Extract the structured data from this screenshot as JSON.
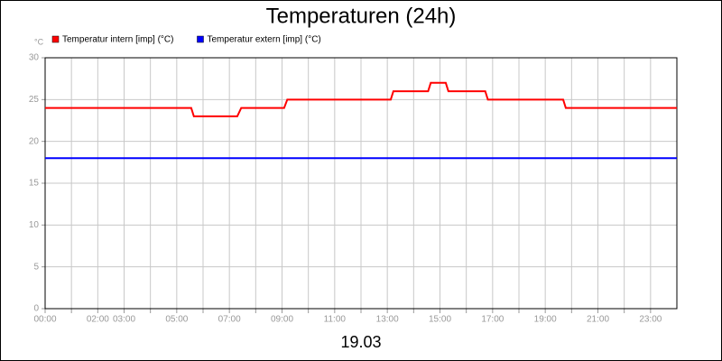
{
  "chart_data": {
    "type": "line",
    "title": "Temperaturen (24h)",
    "y_unit": "°C",
    "x_label": "19.03",
    "xlim": [
      0,
      24
    ],
    "ylim": [
      0,
      30
    ],
    "yticks": [
      0,
      5,
      10,
      15,
      20,
      25,
      30
    ],
    "grid": true,
    "xticks": [
      {
        "value": 0,
        "label": "00:00"
      },
      {
        "value": 1,
        "label": null
      },
      {
        "value": 2,
        "label": "02:00"
      },
      {
        "value": 3,
        "label": "03:00"
      },
      {
        "value": 4,
        "label": null
      },
      {
        "value": 5,
        "label": "05:00"
      },
      {
        "value": 6,
        "label": null
      },
      {
        "value": 7,
        "label": "07:00"
      },
      {
        "value": 8,
        "label": null
      },
      {
        "value": 9,
        "label": "09:00"
      },
      {
        "value": 10,
        "label": null
      },
      {
        "value": 11,
        "label": "11:00"
      },
      {
        "value": 12,
        "label": null
      },
      {
        "value": 13,
        "label": "13:00"
      },
      {
        "value": 14,
        "label": null
      },
      {
        "value": 15,
        "label": "15:00"
      },
      {
        "value": 16,
        "label": null
      },
      {
        "value": 17,
        "label": "17:00"
      },
      {
        "value": 18,
        "label": null
      },
      {
        "value": 19,
        "label": "19:00"
      },
      {
        "value": 20,
        "label": null
      },
      {
        "value": 21,
        "label": "21:00"
      },
      {
        "value": 22,
        "label": null
      },
      {
        "value": 23,
        "label": "23:00"
      }
    ],
    "series": [
      {
        "name": "Temperatur intern [imp] (°C)",
        "color": "#ff0000",
        "x": [
          0,
          5.55,
          5.65,
          7.3,
          7.45,
          9.08,
          9.2,
          13.13,
          13.23,
          14.55,
          14.65,
          15.22,
          15.32,
          16.72,
          16.82,
          19.68,
          19.78,
          24
        ],
        "values": [
          24,
          24,
          23,
          23,
          24,
          24,
          25,
          25,
          26,
          26,
          27,
          27,
          26,
          26,
          25,
          25,
          24,
          24
        ]
      },
      {
        "name": "Temperatur extern [imp] (°C)",
        "color": "#0000ff",
        "x": [
          0,
          24
        ],
        "values": [
          18,
          18
        ]
      }
    ]
  }
}
